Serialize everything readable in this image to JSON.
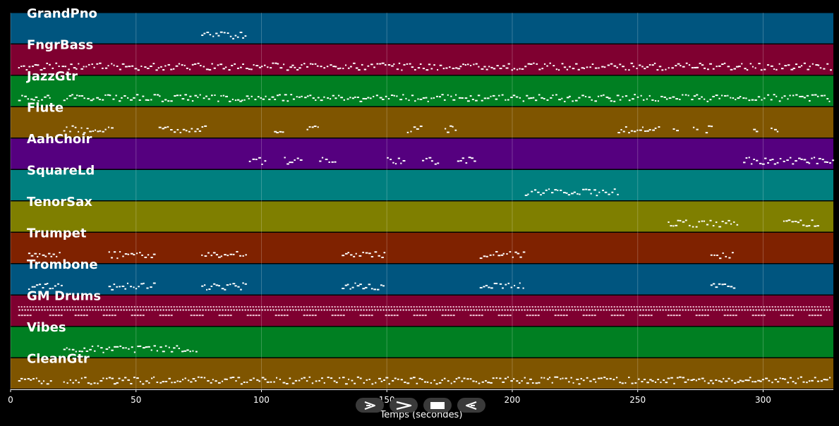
{
  "chart_data": {
    "type": "piano-roll",
    "xlabel": "Temps (secondes)",
    "xlim": [
      0,
      328
    ],
    "xticks": [
      0,
      50,
      100,
      150,
      200,
      250,
      300
    ],
    "grid": true,
    "tracks": [
      {
        "name": "GrandPno",
        "color": "#00557f",
        "segments": [
          [
            76,
            94
          ]
        ]
      },
      {
        "name": "FngrBass",
        "color": "#7f0030",
        "segments": [
          [
            3,
            327
          ]
        ]
      },
      {
        "name": "JazzGtr",
        "color": "#007f22",
        "segments": [
          [
            3,
            16
          ],
          [
            21,
            327
          ]
        ]
      },
      {
        "name": "Flute",
        "color": "#7f5500",
        "segments": [
          [
            21,
            41
          ],
          [
            59,
            78
          ],
          [
            105,
            109
          ],
          [
            118,
            123
          ],
          [
            158,
            164
          ],
          [
            173,
            178
          ],
          [
            242,
            259
          ],
          [
            264,
            266
          ],
          [
            272,
            274
          ],
          [
            277,
            280
          ],
          [
            296,
            298
          ],
          [
            303,
            306
          ]
        ]
      },
      {
        "name": "AahChoir",
        "color": "#55007f",
        "segments": [
          [
            95,
            102
          ],
          [
            109,
            116
          ],
          [
            123,
            130
          ],
          [
            150,
            157
          ],
          [
            164,
            171
          ],
          [
            178,
            185
          ],
          [
            292,
            328
          ]
        ]
      },
      {
        "name": "SquareLd",
        "color": "#007f7f",
        "segments": [
          [
            205,
            242
          ]
        ]
      },
      {
        "name": "TenorSax",
        "color": "#7f7f00",
        "segments": [
          [
            262,
            290
          ],
          [
            308,
            322
          ]
        ]
      },
      {
        "name": "Trumpet",
        "color": "#7f2200",
        "segments": [
          [
            7,
            20
          ],
          [
            39,
            57
          ],
          [
            76,
            94
          ],
          [
            132,
            149
          ],
          [
            187,
            205
          ],
          [
            279,
            288
          ]
        ]
      },
      {
        "name": "Trombone",
        "color": "#00557f",
        "segments": [
          [
            7,
            20
          ],
          [
            39,
            57
          ],
          [
            76,
            94
          ],
          [
            132,
            149
          ],
          [
            187,
            205
          ],
          [
            279,
            288
          ]
        ]
      },
      {
        "name": "GM Drums",
        "color": "#7f0030",
        "segments": [
          [
            3,
            327
          ]
        ]
      },
      {
        "name": "Vibes",
        "color": "#007f22",
        "segments": [
          [
            21,
            75
          ]
        ]
      },
      {
        "name": "CleanGtr",
        "color": "#7f5500",
        "segments": [
          [
            3,
            16
          ],
          [
            21,
            327
          ]
        ]
      }
    ]
  },
  "controls": {
    "play_icon": "play-outline-icon",
    "fast_forward_icon": "chevron-right-icon",
    "stop_icon": "stop-icon",
    "rewind_icon": "rewind-icon"
  }
}
